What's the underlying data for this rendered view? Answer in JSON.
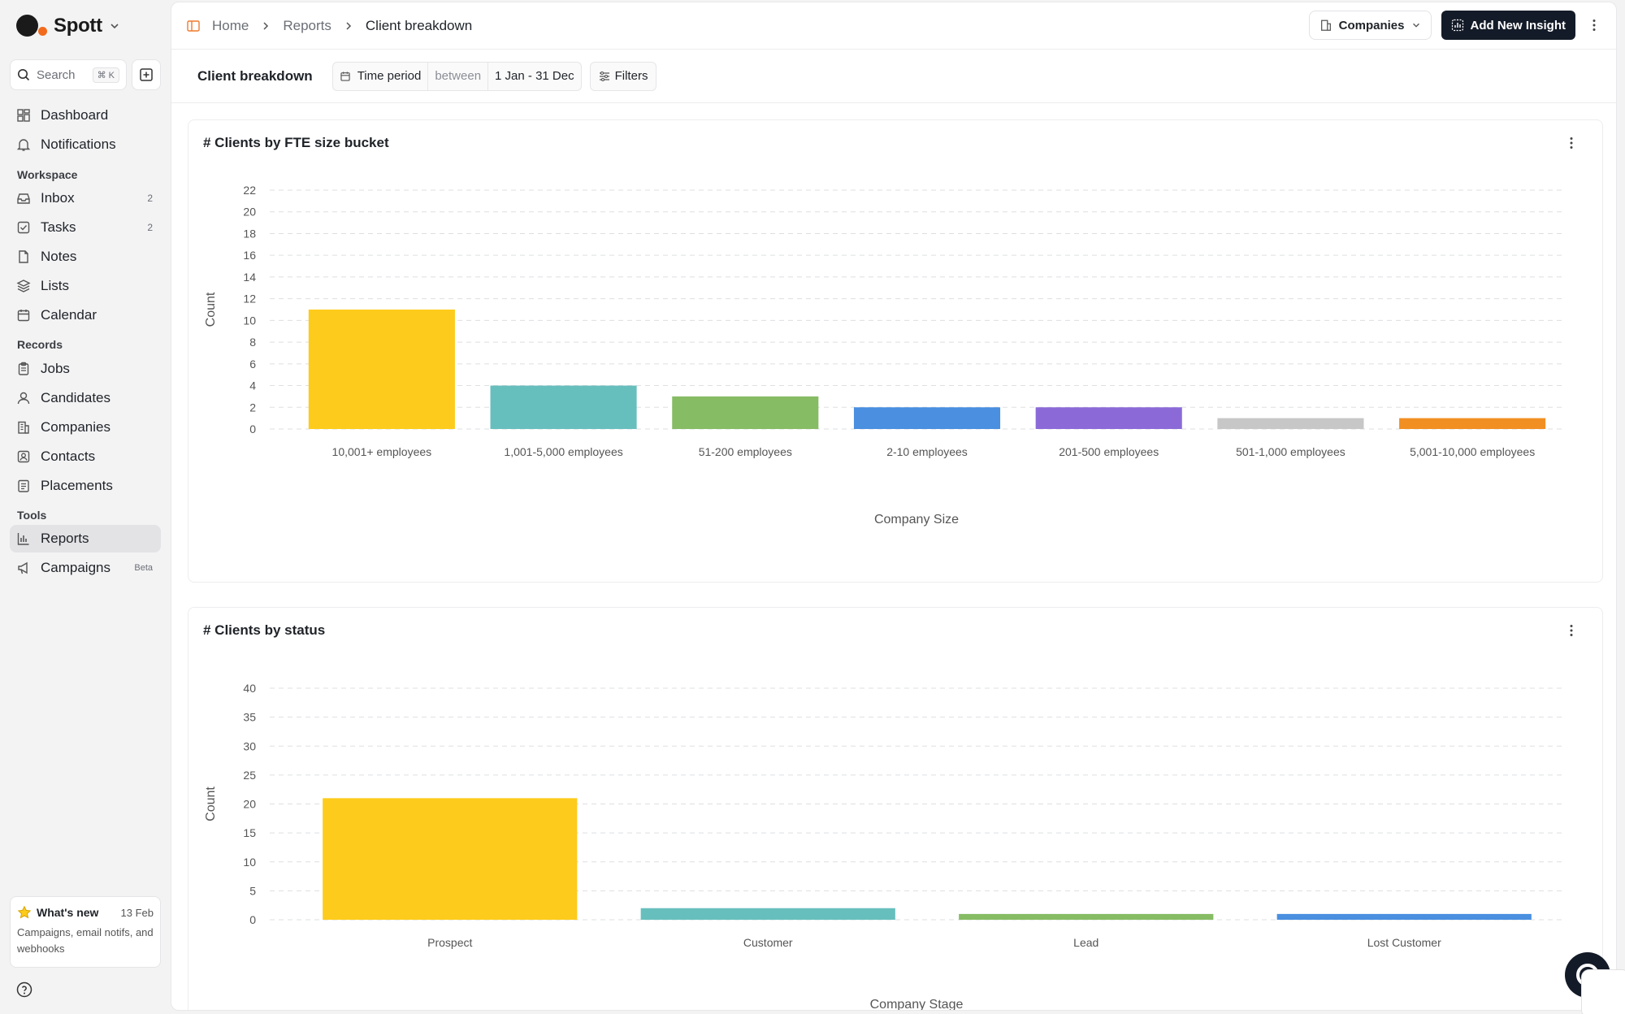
{
  "brand": {
    "name": "Spott"
  },
  "search": {
    "placeholder": "Search",
    "shortcut": "⌘ K"
  },
  "sidebar": {
    "top_items": [
      {
        "label": "Dashboard",
        "icon": "dashboard-icon"
      },
      {
        "label": "Notifications",
        "icon": "bell-icon"
      }
    ],
    "sections": [
      {
        "label": "Workspace"
      },
      {
        "label": "Records"
      },
      {
        "label": "Tools"
      }
    ],
    "workspace_items": [
      {
        "label": "Inbox",
        "count": "2",
        "icon": "inbox-icon"
      },
      {
        "label": "Tasks",
        "count": "2",
        "icon": "tasks-icon"
      },
      {
        "label": "Notes",
        "icon": "notes-icon"
      },
      {
        "label": "Lists",
        "icon": "lists-icon"
      },
      {
        "label": "Calendar",
        "icon": "calendar-icon"
      }
    ],
    "records_items": [
      {
        "label": "Jobs",
        "icon": "jobs-icon"
      },
      {
        "label": "Candidates",
        "icon": "candidates-icon"
      },
      {
        "label": "Companies",
        "icon": "companies-icon"
      },
      {
        "label": "Contacts",
        "icon": "contacts-icon"
      },
      {
        "label": "Placements",
        "icon": "placements-icon"
      }
    ],
    "tools_items": [
      {
        "label": "Reports",
        "icon": "reports-icon",
        "active": true
      },
      {
        "label": "Campaigns",
        "badge": "Beta",
        "icon": "campaigns-icon"
      }
    ],
    "whats_new": {
      "title": "What's new",
      "date": "13 Feb",
      "body": "Campaigns, email notifs, and webhooks"
    }
  },
  "breadcrumb": {
    "home": "Home",
    "reports": "Reports",
    "current": "Client breakdown"
  },
  "toolbar": {
    "entity": "Companies",
    "add_insight": "Add New Insight"
  },
  "report": {
    "title": "Client breakdown",
    "filter_field": "Time period",
    "filter_operator": "between",
    "filter_value": "1 Jan - 31 Dec",
    "filters_label": "Filters"
  },
  "chart_data": [
    {
      "type": "bar",
      "title": "# Clients by FTE size bucket",
      "xlabel": "Company Size",
      "ylabel": "Count",
      "ylim": [
        0,
        22
      ],
      "yticks": [
        0,
        2,
        4,
        6,
        8,
        10,
        12,
        14,
        16,
        18,
        20,
        22
      ],
      "grid": true,
      "categories": [
        "10,001+ employees",
        "1,001-5,000 employees",
        "51-200 employees",
        "2-10 employees",
        "201-500 employees",
        "501-1,000 employees",
        "5,001-10,000 employees"
      ],
      "values": [
        11,
        4,
        3,
        2,
        2,
        1,
        1
      ],
      "colors": [
        "#fdcb1b",
        "#67bfbd",
        "#86bc63",
        "#4a8fe0",
        "#8b6ad8",
        "#c7c7c7",
        "#f18f23"
      ]
    },
    {
      "type": "bar",
      "title": "# Clients by status",
      "xlabel": "Company Stage",
      "ylabel": "Count",
      "ylim": [
        0,
        40
      ],
      "yticks": [
        0,
        5,
        10,
        15,
        20,
        25,
        30,
        35,
        40
      ],
      "grid": true,
      "categories": [
        "Prospect",
        "Customer",
        "Lead",
        "Lost Customer"
      ],
      "values": [
        21,
        2,
        1,
        1
      ],
      "colors": [
        "#fdcb1b",
        "#67bfbd",
        "#86bc63",
        "#4a8fe0"
      ]
    }
  ]
}
